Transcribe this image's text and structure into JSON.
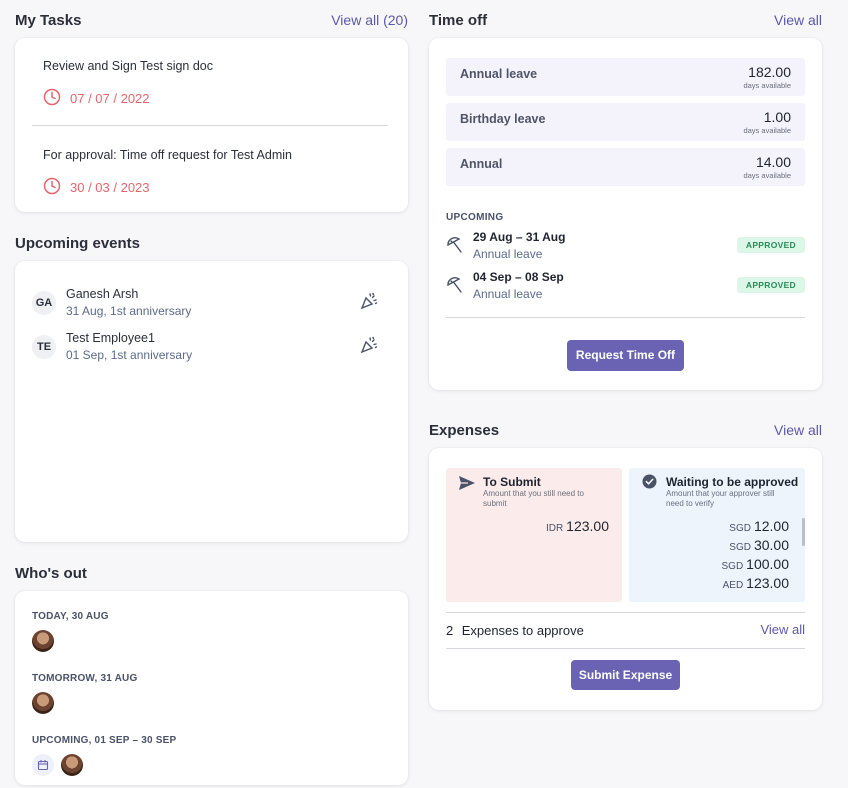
{
  "my_tasks": {
    "title": "My Tasks",
    "view_all": "View all (20)",
    "tasks": [
      {
        "title": "Review and Sign Test sign doc",
        "date": "07 / 07 / 2022"
      },
      {
        "title": "For approval: Time off request for Test Admin",
        "date": "30 / 03 / 2023"
      }
    ]
  },
  "upcoming_events": {
    "title": "Upcoming events",
    "events": [
      {
        "initials": "GA",
        "name": "Ganesh Arsh",
        "detail": "31 Aug, 1st anniversary",
        "icon": "celebration-icon"
      },
      {
        "initials": "TE",
        "name": "Test Employee1",
        "detail": "01 Sep, 1st anniversary",
        "icon": "celebration-icon"
      }
    ]
  },
  "whos_out": {
    "title": "Who's out",
    "groups": [
      {
        "label": "TODAY, 30 AUG"
      },
      {
        "label": "TOMORROW, 31 AUG"
      },
      {
        "label": "UPCOMING, 01 SEP – 30 SEP"
      }
    ]
  },
  "time_off": {
    "title": "Time off",
    "view_all": "View all",
    "balances": [
      {
        "name": "Annual leave",
        "value": "182.00",
        "unit": "days available"
      },
      {
        "name": "Birthday leave",
        "value": "1.00",
        "unit": "days available"
      },
      {
        "name": "Annual",
        "value": "14.00",
        "unit": "days available"
      }
    ],
    "upcoming_label": "UPCOMING",
    "upcoming": [
      {
        "dates": "29 Aug – 31 Aug",
        "type": "Annual leave",
        "status": "APPROVED"
      },
      {
        "dates": "04 Sep – 08 Sep",
        "type": "Annual leave",
        "status": "APPROVED"
      }
    ],
    "request_button": "Request Time Off"
  },
  "expenses": {
    "title": "Expenses",
    "view_all": "View all",
    "to_submit": {
      "title": "To Submit",
      "desc_line1": "Amount that you still need to",
      "desc_line2": "submit",
      "amounts": [
        {
          "currency": "IDR",
          "value": "123.00"
        }
      ]
    },
    "waiting": {
      "title": "Waiting to be approved",
      "desc_line1": "Amount that your approver still",
      "desc_line2": "need to verify",
      "amounts": [
        {
          "currency": "SGD",
          "value": "12.00"
        },
        {
          "currency": "SGD",
          "value": "30.00"
        },
        {
          "currency": "SGD",
          "value": "100.00"
        },
        {
          "currency": "AED",
          "value": "123.00"
        }
      ]
    },
    "approve_count": "2",
    "approve_label": "Expenses to approve",
    "approve_view_all": "View all",
    "submit_button": "Submit Expense"
  },
  "colors": {
    "accent": "#6a63b4",
    "link": "#5b58a8",
    "date_red": "#e5656d",
    "approved_bg": "#dcf6e8",
    "approved_text": "#2a8a57",
    "to_submit_bg": "#fbeceb",
    "waiting_bg": "#eef4fc"
  }
}
